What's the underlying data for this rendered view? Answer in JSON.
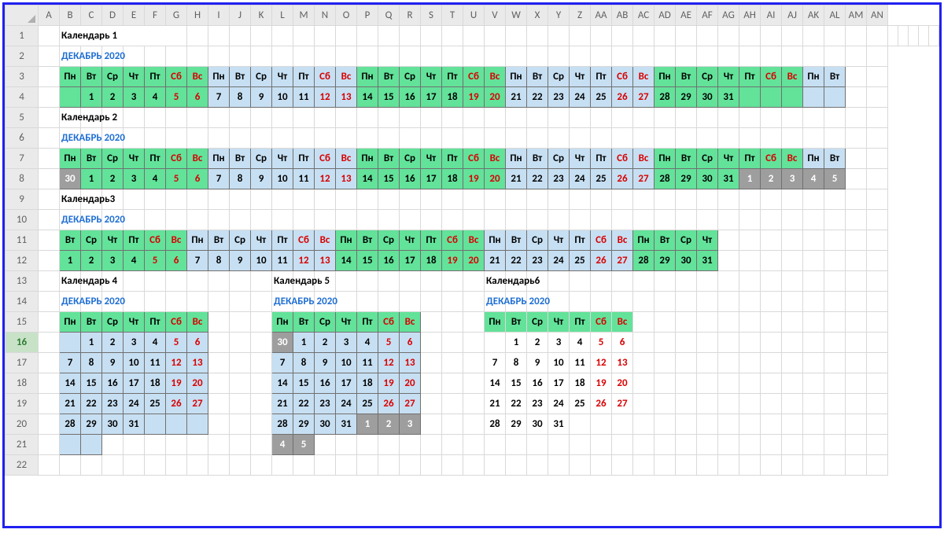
{
  "columns": [
    "A",
    "B",
    "C",
    "D",
    "E",
    "F",
    "G",
    "H",
    "I",
    "J",
    "K",
    "L",
    "M",
    "N",
    "O",
    "P",
    "Q",
    "R",
    "S",
    "T",
    "U",
    "V",
    "W",
    "X",
    "Y",
    "Z",
    "AA",
    "AB",
    "AC",
    "AD",
    "AE",
    "AF",
    "AG",
    "AH",
    "AI",
    "AJ",
    "AK",
    "AL",
    "AM",
    "AN"
  ],
  "rows": [
    "1",
    "2",
    "3",
    "4",
    "5",
    "6",
    "7",
    "8",
    "9",
    "10",
    "11",
    "12",
    "13",
    "14",
    "15",
    "16",
    "17",
    "18",
    "19",
    "20",
    "21",
    "22"
  ],
  "colors": {
    "green": "#63e29a",
    "blue": "#c7dff2",
    "gray": "#9e9e9e",
    "red": "#d80000",
    "titleBlue": "#1f6fd4"
  },
  "selectedRow": "16",
  "weekdays": [
    "Пн",
    "Вт",
    "Ср",
    "Чт",
    "Пт",
    "Сб",
    "Вс"
  ],
  "titles": {
    "cal1": "Календарь 1",
    "cal2": "Календарь 2",
    "cal3": "Календарь3",
    "cal4": "Календарь 4",
    "cal5": "Календарь 5",
    "cal6": "Календарь6",
    "month": "ДЕКАБРЬ 2020"
  },
  "cal_h_header": [
    {
      "t": "Пн",
      "c": "g"
    },
    {
      "t": "Вт",
      "c": "g"
    },
    {
      "t": "Ср",
      "c": "g"
    },
    {
      "t": "Чт",
      "c": "g"
    },
    {
      "t": "Пт",
      "c": "g"
    },
    {
      "t": "Сб",
      "c": "g",
      "r": 1
    },
    {
      "t": "Вс",
      "c": "g",
      "r": 1
    },
    {
      "t": "Пн",
      "c": "b"
    },
    {
      "t": "Вт",
      "c": "b"
    },
    {
      "t": "Ср",
      "c": "b"
    },
    {
      "t": "Чт",
      "c": "b"
    },
    {
      "t": "Пт",
      "c": "b"
    },
    {
      "t": "Сб",
      "c": "b",
      "r": 1
    },
    {
      "t": "Вс",
      "c": "b",
      "r": 1
    },
    {
      "t": "Пн",
      "c": "g"
    },
    {
      "t": "Вт",
      "c": "g"
    },
    {
      "t": "Ср",
      "c": "g"
    },
    {
      "t": "Чт",
      "c": "g"
    },
    {
      "t": "Пт",
      "c": "g"
    },
    {
      "t": "Сб",
      "c": "g",
      "r": 1
    },
    {
      "t": "Вс",
      "c": "g",
      "r": 1
    },
    {
      "t": "Пн",
      "c": "b"
    },
    {
      "t": "Вт",
      "c": "b"
    },
    {
      "t": "Ср",
      "c": "b"
    },
    {
      "t": "Чт",
      "c": "b"
    },
    {
      "t": "Пт",
      "c": "b"
    },
    {
      "t": "Сб",
      "c": "b",
      "r": 1
    },
    {
      "t": "Вс",
      "c": "b",
      "r": 1
    },
    {
      "t": "Пн",
      "c": "g"
    },
    {
      "t": "Вт",
      "c": "g"
    },
    {
      "t": "Ср",
      "c": "g"
    },
    {
      "t": "Чт",
      "c": "g"
    },
    {
      "t": "Пт",
      "c": "g"
    },
    {
      "t": "Сб",
      "c": "g",
      "r": 1
    },
    {
      "t": "Вс",
      "c": "g",
      "r": 1
    },
    {
      "t": "Пн",
      "c": "b"
    },
    {
      "t": "Вт",
      "c": "b"
    }
  ],
  "cal1_days": [
    {
      "t": "",
      "c": "g"
    },
    {
      "t": "1",
      "c": "g"
    },
    {
      "t": "2",
      "c": "g"
    },
    {
      "t": "3",
      "c": "g"
    },
    {
      "t": "4",
      "c": "g"
    },
    {
      "t": "5",
      "c": "g",
      "r": 1
    },
    {
      "t": "6",
      "c": "g",
      "r": 1
    },
    {
      "t": "7",
      "c": "b"
    },
    {
      "t": "8",
      "c": "b"
    },
    {
      "t": "9",
      "c": "b"
    },
    {
      "t": "10",
      "c": "b"
    },
    {
      "t": "11",
      "c": "b"
    },
    {
      "t": "12",
      "c": "b",
      "r": 1
    },
    {
      "t": "13",
      "c": "b",
      "r": 1
    },
    {
      "t": "14",
      "c": "g"
    },
    {
      "t": "15",
      "c": "g"
    },
    {
      "t": "16",
      "c": "g"
    },
    {
      "t": "17",
      "c": "g"
    },
    {
      "t": "18",
      "c": "g"
    },
    {
      "t": "19",
      "c": "g",
      "r": 1
    },
    {
      "t": "20",
      "c": "g",
      "r": 1
    },
    {
      "t": "21",
      "c": "b"
    },
    {
      "t": "22",
      "c": "b"
    },
    {
      "t": "23",
      "c": "b"
    },
    {
      "t": "24",
      "c": "b"
    },
    {
      "t": "25",
      "c": "b"
    },
    {
      "t": "26",
      "c": "b",
      "r": 1
    },
    {
      "t": "27",
      "c": "b",
      "r": 1
    },
    {
      "t": "28",
      "c": "g"
    },
    {
      "t": "29",
      "c": "g"
    },
    {
      "t": "30",
      "c": "g"
    },
    {
      "t": "31",
      "c": "g"
    },
    {
      "t": "",
      "c": "g"
    },
    {
      "t": "",
      "c": "g"
    },
    {
      "t": "",
      "c": "g"
    },
    {
      "t": "",
      "c": "b"
    },
    {
      "t": "",
      "c": "b"
    }
  ],
  "cal2_days": [
    {
      "t": "30",
      "c": "gy"
    },
    {
      "t": "1",
      "c": "g"
    },
    {
      "t": "2",
      "c": "g"
    },
    {
      "t": "3",
      "c": "g"
    },
    {
      "t": "4",
      "c": "g"
    },
    {
      "t": "5",
      "c": "g",
      "r": 1
    },
    {
      "t": "6",
      "c": "g",
      "r": 1
    },
    {
      "t": "7",
      "c": "b"
    },
    {
      "t": "8",
      "c": "b"
    },
    {
      "t": "9",
      "c": "b"
    },
    {
      "t": "10",
      "c": "b"
    },
    {
      "t": "11",
      "c": "b"
    },
    {
      "t": "12",
      "c": "b",
      "r": 1
    },
    {
      "t": "13",
      "c": "b",
      "r": 1
    },
    {
      "t": "14",
      "c": "g"
    },
    {
      "t": "15",
      "c": "g"
    },
    {
      "t": "16",
      "c": "g"
    },
    {
      "t": "17",
      "c": "g"
    },
    {
      "t": "18",
      "c": "g"
    },
    {
      "t": "19",
      "c": "g",
      "r": 1
    },
    {
      "t": "20",
      "c": "g",
      "r": 1
    },
    {
      "t": "21",
      "c": "b"
    },
    {
      "t": "22",
      "c": "b"
    },
    {
      "t": "23",
      "c": "b"
    },
    {
      "t": "24",
      "c": "b"
    },
    {
      "t": "25",
      "c": "b"
    },
    {
      "t": "26",
      "c": "b",
      "r": 1
    },
    {
      "t": "27",
      "c": "b",
      "r": 1
    },
    {
      "t": "28",
      "c": "g"
    },
    {
      "t": "29",
      "c": "g"
    },
    {
      "t": "30",
      "c": "g"
    },
    {
      "t": "31",
      "c": "g"
    },
    {
      "t": "1",
      "c": "gy"
    },
    {
      "t": "2",
      "c": "gy"
    },
    {
      "t": "3",
      "c": "gy"
    },
    {
      "t": "4",
      "c": "gy"
    },
    {
      "t": "5",
      "c": "gy"
    }
  ],
  "cal3_header": [
    {
      "t": "Вт",
      "c": "g"
    },
    {
      "t": "Ср",
      "c": "g"
    },
    {
      "t": "Чт",
      "c": "g"
    },
    {
      "t": "Пт",
      "c": "g"
    },
    {
      "t": "Сб",
      "c": "g",
      "r": 1
    },
    {
      "t": "Вс",
      "c": "g",
      "r": 1
    },
    {
      "t": "Пн",
      "c": "b"
    },
    {
      "t": "Вт",
      "c": "b"
    },
    {
      "t": "Ср",
      "c": "b"
    },
    {
      "t": "Чт",
      "c": "b"
    },
    {
      "t": "Пт",
      "c": "b"
    },
    {
      "t": "Сб",
      "c": "b",
      "r": 1
    },
    {
      "t": "Вс",
      "c": "b",
      "r": 1
    },
    {
      "t": "Пн",
      "c": "g"
    },
    {
      "t": "Вт",
      "c": "g"
    },
    {
      "t": "Ср",
      "c": "g"
    },
    {
      "t": "Чт",
      "c": "g"
    },
    {
      "t": "Пт",
      "c": "g"
    },
    {
      "t": "Сб",
      "c": "g",
      "r": 1
    },
    {
      "t": "Вс",
      "c": "g",
      "r": 1
    },
    {
      "t": "Пн",
      "c": "b"
    },
    {
      "t": "Вт",
      "c": "b"
    },
    {
      "t": "Ср",
      "c": "b"
    },
    {
      "t": "Чт",
      "c": "b"
    },
    {
      "t": "Пт",
      "c": "b"
    },
    {
      "t": "Сб",
      "c": "b",
      "r": 1
    },
    {
      "t": "Вс",
      "c": "b",
      "r": 1
    },
    {
      "t": "Пн",
      "c": "g"
    },
    {
      "t": "Вт",
      "c": "g"
    },
    {
      "t": "Ср",
      "c": "g"
    },
    {
      "t": "Чт",
      "c": "g"
    }
  ],
  "cal3_days": [
    {
      "t": "1",
      "c": "g"
    },
    {
      "t": "2",
      "c": "g"
    },
    {
      "t": "3",
      "c": "g"
    },
    {
      "t": "4",
      "c": "g"
    },
    {
      "t": "5",
      "c": "g",
      "r": 1
    },
    {
      "t": "6",
      "c": "g",
      "r": 1
    },
    {
      "t": "7",
      "c": "b"
    },
    {
      "t": "8",
      "c": "b"
    },
    {
      "t": "9",
      "c": "b"
    },
    {
      "t": "10",
      "c": "b"
    },
    {
      "t": "11",
      "c": "b"
    },
    {
      "t": "12",
      "c": "b",
      "r": 1
    },
    {
      "t": "13",
      "c": "b",
      "r": 1
    },
    {
      "t": "14",
      "c": "g"
    },
    {
      "t": "15",
      "c": "g"
    },
    {
      "t": "16",
      "c": "g"
    },
    {
      "t": "17",
      "c": "g"
    },
    {
      "t": "18",
      "c": "g"
    },
    {
      "t": "19",
      "c": "g",
      "r": 1
    },
    {
      "t": "20",
      "c": "g",
      "r": 1
    },
    {
      "t": "21",
      "c": "b"
    },
    {
      "t": "22",
      "c": "b"
    },
    {
      "t": "23",
      "c": "b"
    },
    {
      "t": "24",
      "c": "b"
    },
    {
      "t": "25",
      "c": "b"
    },
    {
      "t": "26",
      "c": "b",
      "r": 1
    },
    {
      "t": "27",
      "c": "b",
      "r": 1
    },
    {
      "t": "28",
      "c": "g"
    },
    {
      "t": "29",
      "c": "g"
    },
    {
      "t": "30",
      "c": "g"
    },
    {
      "t": "31",
      "c": "g"
    }
  ],
  "cal4_header": [
    {
      "t": "Пн",
      "c": "g"
    },
    {
      "t": "Вт",
      "c": "g"
    },
    {
      "t": "Ср",
      "c": "g"
    },
    {
      "t": "Чт",
      "c": "g"
    },
    {
      "t": "Пт",
      "c": "g"
    },
    {
      "t": "Сб",
      "c": "g",
      "r": 1
    },
    {
      "t": "Вс",
      "c": "g",
      "r": 1
    }
  ],
  "cal4_grid": [
    [
      {
        "t": "",
        "c": "b"
      },
      {
        "t": "1",
        "c": "b"
      },
      {
        "t": "2",
        "c": "b"
      },
      {
        "t": "3",
        "c": "b"
      },
      {
        "t": "4",
        "c": "b"
      },
      {
        "t": "5",
        "c": "b",
        "r": 1
      },
      {
        "t": "6",
        "c": "b",
        "r": 1
      }
    ],
    [
      {
        "t": "7",
        "c": "b"
      },
      {
        "t": "8",
        "c": "b"
      },
      {
        "t": "9",
        "c": "b"
      },
      {
        "t": "10",
        "c": "b"
      },
      {
        "t": "11",
        "c": "b"
      },
      {
        "t": "12",
        "c": "b",
        "r": 1
      },
      {
        "t": "13",
        "c": "b",
        "r": 1
      }
    ],
    [
      {
        "t": "14",
        "c": "b"
      },
      {
        "t": "15",
        "c": "b"
      },
      {
        "t": "16",
        "c": "b"
      },
      {
        "t": "17",
        "c": "b"
      },
      {
        "t": "18",
        "c": "b"
      },
      {
        "t": "19",
        "c": "b",
        "r": 1
      },
      {
        "t": "20",
        "c": "b",
        "r": 1
      }
    ],
    [
      {
        "t": "21",
        "c": "b"
      },
      {
        "t": "22",
        "c": "b"
      },
      {
        "t": "23",
        "c": "b"
      },
      {
        "t": "24",
        "c": "b"
      },
      {
        "t": "25",
        "c": "b"
      },
      {
        "t": "26",
        "c": "b",
        "r": 1
      },
      {
        "t": "27",
        "c": "b",
        "r": 1
      }
    ],
    [
      {
        "t": "28",
        "c": "b"
      },
      {
        "t": "29",
        "c": "b"
      },
      {
        "t": "30",
        "c": "b"
      },
      {
        "t": "31",
        "c": "b"
      },
      {
        "t": "",
        "c": "b"
      },
      {
        "t": "",
        "c": "b"
      },
      {
        "t": "",
        "c": "b"
      }
    ],
    [
      {
        "t": "",
        "c": "b"
      },
      {
        "t": "",
        "c": "b"
      }
    ]
  ],
  "cal5_grid": [
    [
      {
        "t": "30",
        "c": "gy"
      },
      {
        "t": "1",
        "c": "b"
      },
      {
        "t": "2",
        "c": "b"
      },
      {
        "t": "3",
        "c": "b"
      },
      {
        "t": "4",
        "c": "b"
      },
      {
        "t": "5",
        "c": "b",
        "r": 1
      },
      {
        "t": "6",
        "c": "b",
        "r": 1
      }
    ],
    [
      {
        "t": "7",
        "c": "b"
      },
      {
        "t": "8",
        "c": "b"
      },
      {
        "t": "9",
        "c": "b"
      },
      {
        "t": "10",
        "c": "b"
      },
      {
        "t": "11",
        "c": "b"
      },
      {
        "t": "12",
        "c": "b",
        "r": 1
      },
      {
        "t": "13",
        "c": "b",
        "r": 1
      }
    ],
    [
      {
        "t": "14",
        "c": "b"
      },
      {
        "t": "15",
        "c": "b"
      },
      {
        "t": "16",
        "c": "b"
      },
      {
        "t": "17",
        "c": "b"
      },
      {
        "t": "18",
        "c": "b"
      },
      {
        "t": "19",
        "c": "b",
        "r": 1
      },
      {
        "t": "20",
        "c": "b",
        "r": 1
      }
    ],
    [
      {
        "t": "21",
        "c": "b"
      },
      {
        "t": "22",
        "c": "b"
      },
      {
        "t": "23",
        "c": "b"
      },
      {
        "t": "24",
        "c": "b"
      },
      {
        "t": "25",
        "c": "b"
      },
      {
        "t": "26",
        "c": "b",
        "r": 1
      },
      {
        "t": "27",
        "c": "b",
        "r": 1
      }
    ],
    [
      {
        "t": "28",
        "c": "b"
      },
      {
        "t": "29",
        "c": "b"
      },
      {
        "t": "30",
        "c": "b"
      },
      {
        "t": "31",
        "c": "b"
      },
      {
        "t": "1",
        "c": "gy"
      },
      {
        "t": "2",
        "c": "gy"
      },
      {
        "t": "3",
        "c": "gy"
      }
    ],
    [
      {
        "t": "4",
        "c": "gy"
      },
      {
        "t": "5",
        "c": "gy"
      }
    ]
  ],
  "cal6_grid": [
    [
      {
        "t": ""
      },
      {
        "t": "1"
      },
      {
        "t": "2"
      },
      {
        "t": "3"
      },
      {
        "t": "4"
      },
      {
        "t": "5",
        "r": 1
      },
      {
        "t": "6",
        "r": 1
      }
    ],
    [
      {
        "t": "7"
      },
      {
        "t": "8"
      },
      {
        "t": "9"
      },
      {
        "t": "10"
      },
      {
        "t": "11"
      },
      {
        "t": "12",
        "r": 1
      },
      {
        "t": "13",
        "r": 1
      }
    ],
    [
      {
        "t": "14"
      },
      {
        "t": "15"
      },
      {
        "t": "16"
      },
      {
        "t": "17"
      },
      {
        "t": "18"
      },
      {
        "t": "19",
        "r": 1
      },
      {
        "t": "20",
        "r": 1
      }
    ],
    [
      {
        "t": "21"
      },
      {
        "t": "22"
      },
      {
        "t": "23"
      },
      {
        "t": "24"
      },
      {
        "t": "25"
      },
      {
        "t": "26",
        "r": 1
      },
      {
        "t": "27",
        "r": 1
      }
    ],
    [
      {
        "t": "28"
      },
      {
        "t": "29"
      },
      {
        "t": "30"
      },
      {
        "t": "31"
      },
      {
        "t": ""
      },
      {
        "t": ""
      },
      {
        "t": ""
      }
    ]
  ]
}
